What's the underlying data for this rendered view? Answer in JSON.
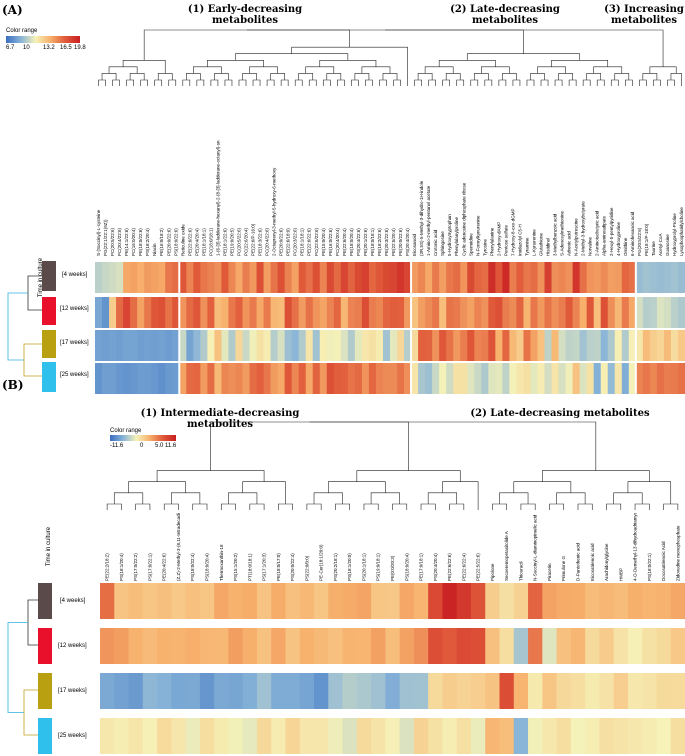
{
  "colors": {
    "swatch_4w": "#5a4a4a",
    "swatch_12w": "#e8102a",
    "swatch_17w": "#b8a010",
    "swatch_25w": "#30c0ec",
    "scale": [
      "#3a6fc0",
      "#88b4d8",
      "#f6f2b8",
      "#f7b06c",
      "#e05a3a",
      "#c81e22"
    ]
  },
  "panel_a": {
    "label": "(A)",
    "color_range_title": "Color range",
    "color_range_ticks": [
      "6.7",
      "10",
      "13.2",
      "16.5",
      "19.8"
    ],
    "group_titles": [
      "(1) Early-decreasing\nmetabolites",
      "(2) Late-decreasing\nmetabolites",
      "(3) Increasing\nmetabolites"
    ],
    "y_axis_title": "Time in culture",
    "rows": [
      "[4 weeks]",
      "[12 weeks]",
      "[17 weeks]",
      "[25 weeks]"
    ],
    "columns": [
      "S-(Succinyl)-L-cysteine",
      "PG(22:1/22:1(9Z))",
      "PC(20:5/22:6)",
      "PC(20:4/22:6)",
      "PE(14:1/22:6)",
      "PC(16:0/20:4)",
      "PE(18:0/22:6)",
      "PS(18:2/20:4)",
      "Niacin",
      "PE(16:0/18:2)",
      "PE(20:0/22:6)",
      "PS(18:0/22:6)",
      "Reticuline oxide",
      "PE(22:6/22:6)",
      "PE(20:4/20:4)",
      "PE(18:1/18:1)",
      "PC(18:0/18:1)",
      "1-(6-[3]-ladderane-hexanyl)-2-(8-[3]-ladderane-octanyl)-sn",
      "PE(18:1/22:6)",
      "PE(19:0/20:5)",
      "PC(20:5/22:6)",
      "PC(22:6/20:4)",
      "PE(22:6/P-16:0)",
      "PE(18:3/22:6)",
      "PC(20:4/22:6)",
      "2-Octaprenyl-3-methyl-5-hydroxy-6-methoxy",
      "PE(20:0/22:6)",
      "PE(22:6/18:0)",
      "PC(20:3/22:6)",
      "PE(18:1/18:1)",
      "PE(22:6/22:6)",
      "PC(22:6/22:6)",
      "PE(15:0/20:4)",
      "PE(16:0/22:6)",
      "PC(20:4/20:4)",
      "PE(22:6/20:4)",
      "PE(18:0/20:4)",
      "PS(20:4/22:6)",
      "PE(20:1/22:6)",
      "PE(18:0/18:1)",
      "PE(18:2/22:6)",
      "PE(20:3/22:6)",
      "PE(22:5/20:4)",
      "PE(20:0/22:6)",
      "PS(20:4/20:4)",
      "Eicosanoid",
      "(3R,5S)-5-Methyl-3-dihydro-1H-indole",
      "1-Amino-2-methyl-pentanol acetate",
      "Crotonic acid",
      "Sphingosine",
      "5-Hydroxytryptophan",
      "Phenylalanylproline",
      "Cyclic adenosine diphosphate ribose",
      "Spermidine",
      "N-Formylkynurenine",
      "Tyrosine",
      "Phenylalanine",
      "2-Hydroxy-dAMP",
      "Pentose sulfate",
      "7-Hydroxy-8-oxo-dGMP",
      "Imidazolyl C5-H",
      "Tyramine",
      "L-Kynurenine",
      "Glutathione",
      "Histidinol",
      "3-Methylbenzoic acid",
      "S-Adenosylmethionine",
      "Adrenic acid",
      "N-Acetylputrescine",
      "2-Methyl-3-hydroxybutyrate",
      "Norvaline",
      "2-Aminoisobutyric acid",
      "Alpha-aminoadipate",
      "2-Hexyl-5-pentylpyridine",
      "4-Hydroxyproline",
      "Ornithine",
      "6-Aminohexanoic acid",
      "PG(20:5/22:6)",
      "PE(18:1/P-18:0)",
      "Taurine",
      "Acetyl-CoA",
      "Guanosine",
      "Hydroxyprolyl-Proline",
      "Lysophosphatidylcholine"
    ],
    "values": [
      [
        10.5,
        10.8,
        11.0,
        11.2,
        14.8,
        15.0,
        14.6,
        15.2,
        15.0,
        14.8,
        16.3,
        16.6,
        17.3,
        15.9,
        17.2,
        16.3,
        16.0,
        15.6,
        17.2,
        15.8,
        14.8,
        16.1,
        15.3,
        17.6,
        15.1,
        16.4,
        17.6,
        16.0,
        15.0,
        17.2,
        16.5,
        17.6,
        15.9,
        17.9,
        16.7,
        18.1,
        16.9,
        17.9,
        18.3,
        16.8,
        17.3,
        17.9,
        18.1,
        18.8,
        18.1,
        15.2,
        15.8,
        14.8,
        16.2,
        15.1,
        16.3,
        16.6,
        15.4,
        17.9,
        16.8,
        16.6,
        19.1,
        17.4,
        19.3,
        16.1,
        17.1,
        16.3,
        16.6,
        15.5,
        18.3,
        15.6,
        15.8,
        15.5,
        18.8,
        16.5,
        15.4,
        15.2,
        15.7,
        15.1,
        15.2,
        16.8,
        16.5,
        9.7,
        9.9,
        9.8,
        9.7,
        9.8,
        9.9,
        9.7
      ],
      [
        8.8,
        8.1,
        13.4,
        16.7,
        18.1,
        16.6,
        15.0,
        16.3,
        17.3,
        17.6,
        16.4,
        17.3,
        15.4,
        16.7,
        17.3,
        15.5,
        17.0,
        14.1,
        14.5,
        16.3,
        17.0,
        15.4,
        16.2,
        14.8,
        16.2,
        14.3,
        14.1,
        17.6,
        16.5,
        15.2,
        16.5,
        15.4,
        14.9,
        15.9,
        16.8,
        14.3,
        15.9,
        16.1,
        17.7,
        16.1,
        15.8,
        16.8,
        17.1,
        17.0,
        15.3,
        13.9,
        15.1,
        15.7,
        16.3,
        14.0,
        16.4,
        16.2,
        15.5,
        15.0,
        15.9,
        15.5,
        17.2,
        17.6,
        16.1,
        15.7,
        16.9,
        14.4,
        16.3,
        15.3,
        16.4,
        15.6,
        16.1,
        17.2,
        15.9,
        14.6,
        17.3,
        14.0,
        17.6,
        15.6,
        14.3,
        16.2,
        14.8,
        11.1,
        10.4,
        10.5,
        11.3,
        11.1,
        10.5,
        10.2
      ],
      [
        8.6,
        8.5,
        8.6,
        8.5,
        8.7,
        8.7,
        8.5,
        8.6,
        8.5,
        8.6,
        8.4,
        8.6,
        10.8,
        8.7,
        9.5,
        10.3,
        12.0,
        13.9,
        11.5,
        10.3,
        13.0,
        10.9,
        11.8,
        12.6,
        12.2,
        10.4,
        11.2,
        9.8,
        9.4,
        10.3,
        12.5,
        9.9,
        12.1,
        11.8,
        11.9,
        11.3,
        10.3,
        11.5,
        12.4,
        12.6,
        12.2,
        9.9,
        11.5,
        13.0,
        10.4,
        12.9,
        17.0,
        16.9,
        15.5,
        17.3,
        16.4,
        15.3,
        16.1,
        17.4,
        15.9,
        16.1,
        17.5,
        14.5,
        16.8,
        14.2,
        13.5,
        16.4,
        15.0,
        13.9,
        10.6,
        14.2,
        11.1,
        10.6,
        10.7,
        9.9,
        10.5,
        10.6,
        9.4,
        10.2,
        12.1,
        10.3,
        12.0,
        12.4,
        14.1,
        13.4,
        13.1,
        14.1,
        12.8,
        13.6
      ],
      [
        8.1,
        8.5,
        8.5,
        8.2,
        8.1,
        8.2,
        8.4,
        8.4,
        8.2,
        8.0,
        8.3,
        8.4,
        15.0,
        16.7,
        16.8,
        15.2,
        16.6,
        14.2,
        15.8,
        15.6,
        15.8,
        15.2,
        16.6,
        17.0,
        16.3,
        15.2,
        14.8,
        17.3,
        15.8,
        17.0,
        14.8,
        16.9,
        15.3,
        17.6,
        17.1,
        17.0,
        16.4,
        16.7,
        15.4,
        16.8,
        15.9,
        15.7,
        15.7,
        16.4,
        15.6,
        12.5,
        10.1,
        9.8,
        10.9,
        11.9,
        11.0,
        12.6,
        12.6,
        11.4,
        10.9,
        10.2,
        11.4,
        11.5,
        10.6,
        11.9,
        12.4,
        12.7,
        11.5,
        12.2,
        11.1,
        12.5,
        11.2,
        11.8,
        13.9,
        11.3,
        12.6,
        9.2,
        12.1,
        9.6,
        12.4,
        9.1,
        11.9,
        15.9,
        16.3,
        15.8,
        16.5,
        16.1,
        16.2,
        16.5
      ]
    ]
  },
  "panel_b": {
    "label": "(B)",
    "color_range_title": "Color range",
    "color_range_ticks": [
      "-11.6",
      "0",
      "5.0 11.6"
    ],
    "group_titles": [
      "(1) Intermediate-decreasing metabolites",
      "(2) Late-decreasing metabolites"
    ],
    "y_axis_title": "Time in culture",
    "rows": [
      "[4 weeks]",
      "[12 weeks]",
      "[17 weeks]",
      "[25 weeks]"
    ],
    "columns": [
      "PE(22:2/18:2)",
      "PS(18:1/20:4)",
      "PS(17:0/22:2)",
      "PS(17:0/22:1)",
      "PE(20:4/22:6)",
      "(Z,Z)-2-Methyl-3-(8,11-tetradecadienyl)-1,3-benzenediol",
      "PS(18:0/22:4)",
      "PS(18:0/20:4)",
      "Thermoxanthin-18",
      "PS(15:1/20:2)",
      "PT(18:0/18:1)",
      "PS(17:1/20:3)",
      "PE(18:0/17:0)",
      "PS(20:0/22:4)",
      "PS(22:0/0:0)",
      "PE-Cer(18:1/20:0)",
      "PS(20:2/18:1)",
      "PS(18:1/20:0)",
      "PS(20:1/18:1)",
      "PS(19:0/18:1)",
      "PE(0:0/20:3)",
      "PS(18:0/20:4)",
      "PE(17:0/18:1)",
      "PS(20:4/20:4)",
      "PE(22:6/22:6)",
      "PE(22:6/22:4)",
      "PE(22:5/22:6)",
      "Pipolone",
      "Secoeremopetasitolide A",
      "Thiouracil",
      "N-Succinyl-L-diaminopimelic acid",
      "Piracetin",
      "Primulone G",
      "D-Pantothenic acid",
      "Eicosatrienoic acid",
      "Arachidonylglycine",
      "HMBP",
      "4-O-Demethyl-13-dihydroadriamycinone",
      "PS(18:0/22:1)",
      "Docosatrienoic Acid",
      "Zidovudine monophosphate"
    ],
    "values": [
      [
        5.9,
        0.9,
        1.4,
        0.8,
        1.3,
        0.6,
        1.2,
        0.8,
        2.8,
        2.2,
        2.5,
        1.0,
        2.5,
        1.2,
        1.8,
        0.8,
        2.3,
        2.6,
        2.9,
        0.8,
        0.7,
        2.8,
        2.0,
        8.3,
        11.1,
        9.6,
        7.5,
        0.3,
        -1.0,
        0.0,
        6.4,
        3.0,
        2.6,
        2.5,
        1.5,
        1.9,
        1.5,
        2.3,
        2.0,
        2.2,
        2.8
      ],
      [
        3.8,
        3.3,
        2.2,
        1.6,
        2.2,
        2.1,
        2.4,
        1.9,
        1.8,
        3.3,
        2.3,
        1.1,
        2.8,
        1.0,
        2.2,
        1.7,
        1.2,
        2.1,
        2.0,
        3.2,
        1.4,
        3.1,
        4.1,
        7.8,
        7.0,
        8.2,
        7.8,
        1.2,
        -0.9,
        -5.7,
        5.4,
        -3.3,
        1.2,
        1.9,
        -0.6,
        0.4,
        -1.2,
        -2.2,
        -1.1,
        -0.6,
        0.6
      ],
      [
        -7.7,
        -8.2,
        -8.7,
        -6.7,
        -7.1,
        -7.8,
        -7.7,
        -9.0,
        -7.7,
        -7.9,
        -7.3,
        -6.0,
        -7.5,
        -7.5,
        -8.0,
        -9.1,
        -6.0,
        -5.1,
        -5.5,
        -6.0,
        -7.4,
        -6.0,
        -5.9,
        -0.6,
        0.3,
        -0.1,
        0.2,
        1.0,
        8.0,
        2.0,
        -1.7,
        0.8,
        -0.5,
        -0.9,
        -1.8,
        -1.2,
        0.2,
        -1.6,
        -1.3,
        -0.6,
        -0.7
      ],
      [
        -1.6,
        -2.0,
        -1.4,
        -2.2,
        -0.7,
        -1.5,
        -2.8,
        -0.9,
        -1.8,
        -2.5,
        -3.0,
        -0.5,
        -1.9,
        -0.3,
        -1.5,
        -1.5,
        -2.6,
        -3.5,
        -0.6,
        -1.3,
        -2.2,
        -3.5,
        -0.1,
        -1.1,
        -2.0,
        -1.0,
        -2.8,
        1.9,
        1.4,
        -6.9,
        -2.5,
        -1.6,
        -0.9,
        -2.4,
        -2.0,
        -1.0,
        -1.3,
        -1.6,
        -1.9,
        -2.3,
        -0.9
      ]
    ]
  }
}
